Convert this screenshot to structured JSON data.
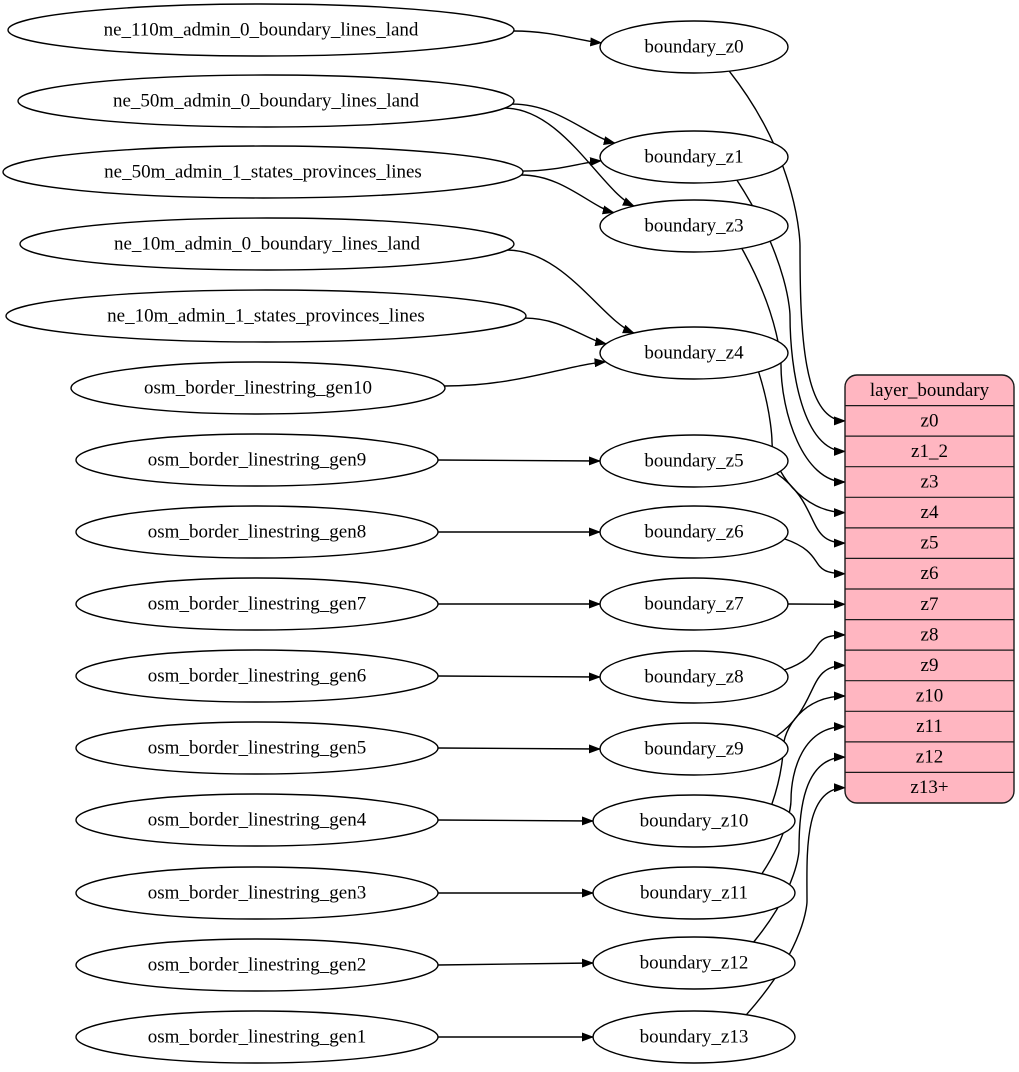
{
  "diagram": {
    "colors": {
      "background": "#ffffff",
      "edge": "#000000",
      "node_fill": "#ffffff",
      "node_stroke": "#000000",
      "table_fill": "#ffb6c1",
      "table_stroke": "#1a1a1a"
    },
    "sources": [
      "ne_110m_admin_0_boundary_lines_land",
      "ne_50m_admin_0_boundary_lines_land",
      "ne_50m_admin_1_states_provinces_lines",
      "ne_10m_admin_0_boundary_lines_land",
      "ne_10m_admin_1_states_provinces_lines",
      "osm_border_linestring_gen10",
      "osm_border_linestring_gen9",
      "osm_border_linestring_gen8",
      "osm_border_linestring_gen7",
      "osm_border_linestring_gen6",
      "osm_border_linestring_gen5",
      "osm_border_linestring_gen4",
      "osm_border_linestring_gen3",
      "osm_border_linestring_gen2",
      "osm_border_linestring_gen1"
    ],
    "transforms": [
      "boundary_z0",
      "boundary_z1",
      "boundary_z3",
      "boundary_z4",
      "boundary_z5",
      "boundary_z6",
      "boundary_z7",
      "boundary_z8",
      "boundary_z9",
      "boundary_z10",
      "boundary_z11",
      "boundary_z12",
      "boundary_z13"
    ],
    "table": {
      "title": "layer_boundary",
      "rows": [
        "z0",
        "z1_2",
        "z3",
        "z4",
        "z5",
        "z6",
        "z7",
        "z8",
        "z9",
        "z10",
        "z11",
        "z12",
        "z13+"
      ]
    },
    "edges": [
      [
        "ne_110m_admin_0_boundary_lines_land",
        "boundary_z0"
      ],
      [
        "ne_50m_admin_0_boundary_lines_land",
        "boundary_z1"
      ],
      [
        "ne_50m_admin_0_boundary_lines_land",
        "boundary_z3"
      ],
      [
        "ne_50m_admin_1_states_provinces_lines",
        "boundary_z1"
      ],
      [
        "ne_50m_admin_1_states_provinces_lines",
        "boundary_z3"
      ],
      [
        "ne_10m_admin_0_boundary_lines_land",
        "boundary_z4"
      ],
      [
        "ne_10m_admin_1_states_provinces_lines",
        "boundary_z4"
      ],
      [
        "osm_border_linestring_gen10",
        "boundary_z4"
      ],
      [
        "osm_border_linestring_gen9",
        "boundary_z5"
      ],
      [
        "osm_border_linestring_gen8",
        "boundary_z6"
      ],
      [
        "osm_border_linestring_gen7",
        "boundary_z7"
      ],
      [
        "osm_border_linestring_gen6",
        "boundary_z8"
      ],
      [
        "osm_border_linestring_gen5",
        "boundary_z9"
      ],
      [
        "osm_border_linestring_gen4",
        "boundary_z10"
      ],
      [
        "osm_border_linestring_gen3",
        "boundary_z11"
      ],
      [
        "osm_border_linestring_gen2",
        "boundary_z12"
      ],
      [
        "osm_border_linestring_gen1",
        "boundary_z13"
      ]
    ],
    "table_edges": [
      [
        "boundary_z0",
        "z0"
      ],
      [
        "boundary_z1",
        "z1_2"
      ],
      [
        "boundary_z3",
        "z3"
      ],
      [
        "boundary_z4",
        "z4"
      ],
      [
        "boundary_z5",
        "z5"
      ],
      [
        "boundary_z6",
        "z6"
      ],
      [
        "boundary_z7",
        "z7"
      ],
      [
        "boundary_z8",
        "z8"
      ],
      [
        "boundary_z9",
        "z9"
      ],
      [
        "boundary_z10",
        "z10"
      ],
      [
        "boundary_z11",
        "z11"
      ],
      [
        "boundary_z12",
        "z12"
      ],
      [
        "boundary_z13",
        "z13+"
      ]
    ]
  }
}
